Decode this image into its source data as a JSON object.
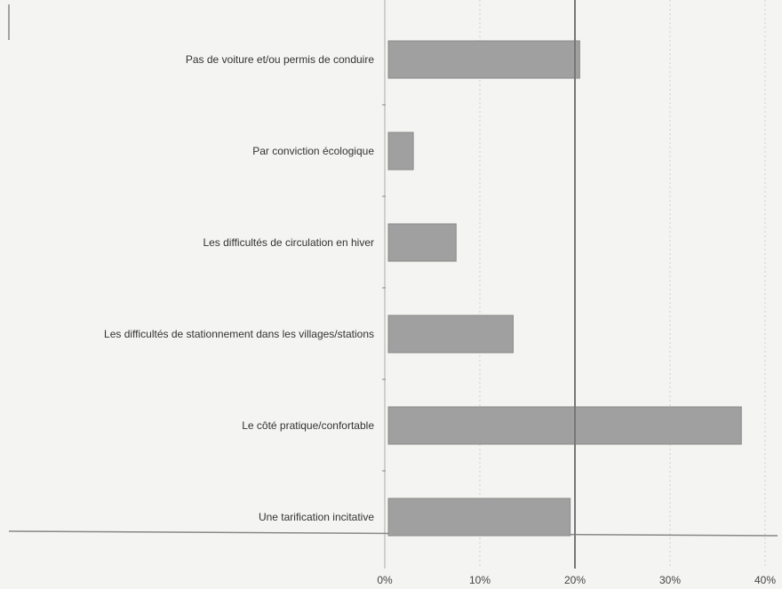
{
  "chart_data": {
    "type": "bar",
    "orientation": "horizontal",
    "categories": [
      "Pas de voiture et/ou permis de conduire",
      "Par conviction écologique",
      "Les difficultés de circulation en hiver",
      "Les difficultés de stationnement dans les villages/stations",
      "Le côté pratique/confortable",
      "Une tarification incitative"
    ],
    "values": [
      20.5,
      3,
      7.5,
      13.5,
      37.5,
      19.5
    ],
    "xlim": [
      0,
      40
    ],
    "xticks": [
      {
        "value": 0,
        "label": "0%"
      },
      {
        "value": 10,
        "label": "10%"
      },
      {
        "value": 20,
        "label": "20%"
      },
      {
        "value": 30,
        "label": "30%"
      },
      {
        "value": 40,
        "label": "40%"
      }
    ],
    "grid": true,
    "bar_color": "#a0a0a0",
    "reference_line": 20
  }
}
